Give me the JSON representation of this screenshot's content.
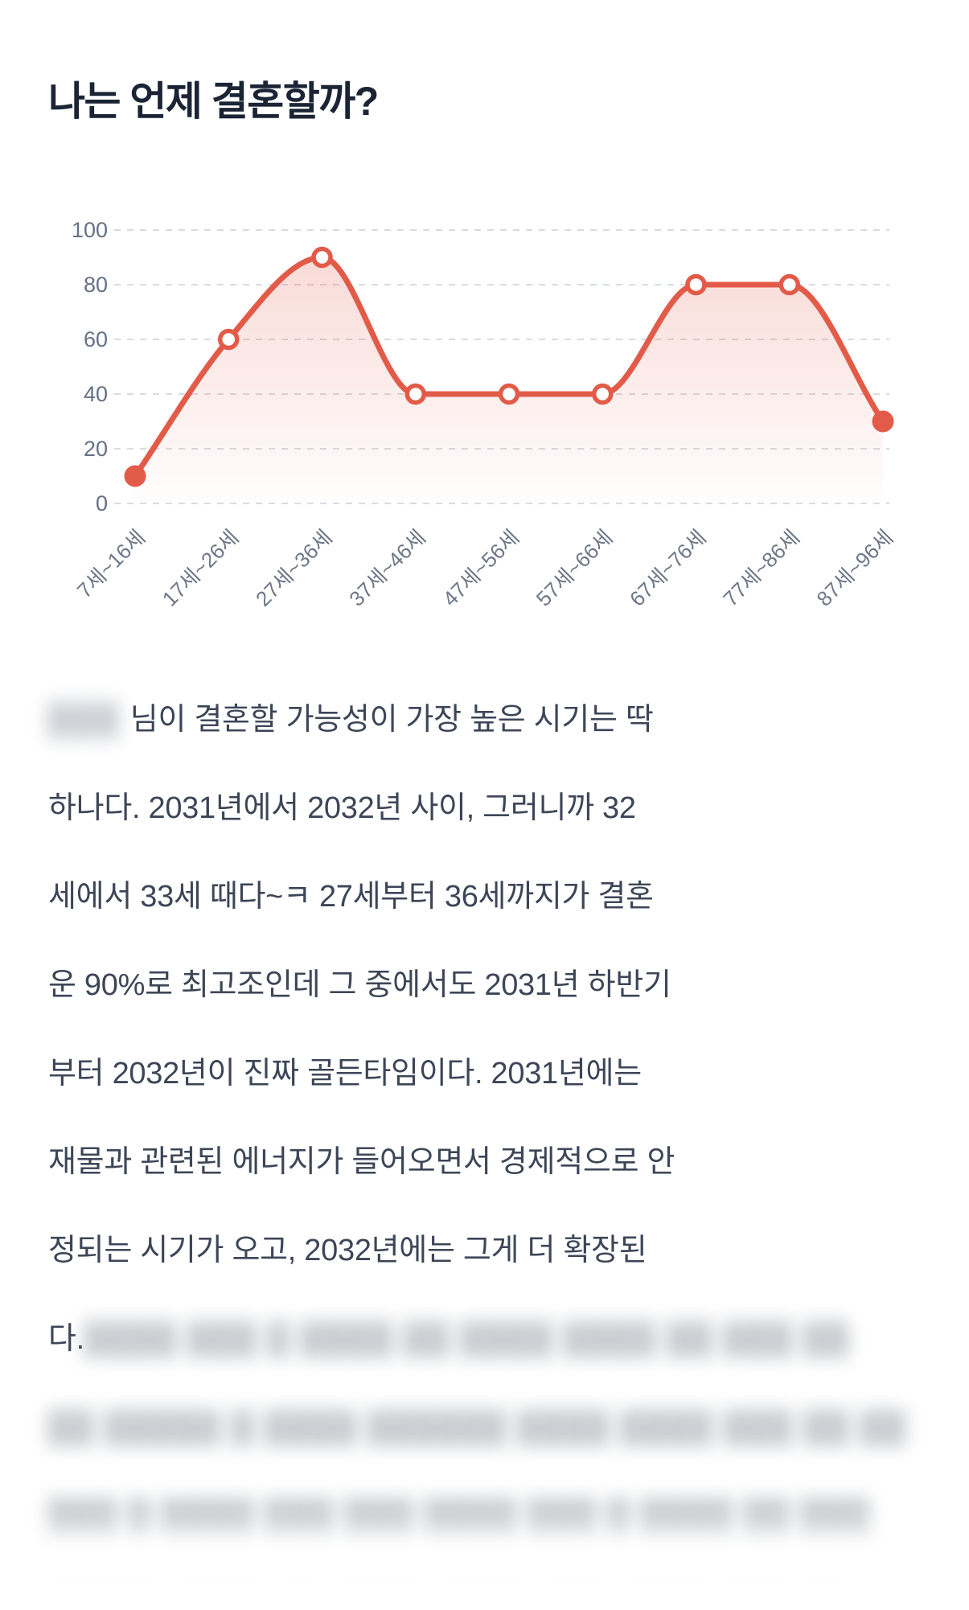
{
  "page": {
    "title": "나는 언제 결혼할까?"
  },
  "chart_data": {
    "type": "line",
    "title": "",
    "categories": [
      "7세~16세",
      "17세~26세",
      "27세~36세",
      "37세~46세",
      "47세~56세",
      "57세~66세",
      "67세~76세",
      "77세~86세",
      "87세~96세"
    ],
    "values": [
      10,
      60,
      90,
      40,
      40,
      40,
      80,
      80,
      30
    ],
    "y_ticks": [
      100,
      80,
      60,
      40,
      20,
      0
    ],
    "ylim": [
      0,
      100
    ],
    "xlabel": "",
    "ylabel": "",
    "legend_position": "none",
    "grid": "horizontal-dashed",
    "x_label_rotation_deg": 45,
    "line_color": "#E25B49",
    "grid_color": "#D8DCE2",
    "tick_color": "#667085",
    "area_fill_top": "rgba(226,91,73,0.22)",
    "area_fill_bottom": "rgba(226,91,73,0.01)",
    "marker_style": "open white circles with red stroke; first and last points solid red"
  },
  "article": {
    "lines": [
      {
        "segments": [
          {
            "text": "███",
            "kind": "name-redaction"
          },
          {
            "text": "님이 결혼할 가능성이 가장 높은 시기는 딱",
            "kind": "plain"
          }
        ]
      },
      {
        "segments": [
          {
            "text": "하나다. 2031년에서 2032년 사이, 그러니까 32",
            "kind": "plain"
          }
        ]
      },
      {
        "segments": [
          {
            "text": "세에서 33세 때다~ㅋ 27세부터 36세까지가 결혼",
            "kind": "plain"
          }
        ]
      },
      {
        "segments": [
          {
            "text": "운 90%로 최고조인데 그 중에서도 2031년 하반기",
            "kind": "plain"
          }
        ]
      },
      {
        "segments": [
          {
            "text": "부터 2032년이 진짜 골든타임이다. 2031년에는",
            "kind": "plain"
          }
        ]
      },
      {
        "segments": [
          {
            "text": "재물과 관련된 에너지가 들어오면서 경제적으로 안",
            "kind": "plain"
          }
        ]
      },
      {
        "segments": [
          {
            "text": "정되는 시기가 오고, 2032년에는 그게 더 확장된",
            "kind": "plain"
          }
        ]
      },
      {
        "segments": [
          {
            "text": "다.",
            "kind": "plain"
          },
          {
            "text": " ████ ███ █ ████ ██ ████ ████ ██ ███ ██",
            "kind": "blurred"
          }
        ]
      },
      {
        "segments": [
          {
            "text": "██ █████ █ ████ ██████ ████ ████ ███ ██ ██",
            "kind": "blurred"
          }
        ]
      },
      {
        "segments": [
          {
            "text": "███ █ ████ ███ ███ ████ ███ █ ████ ██ ███",
            "kind": "blurred"
          }
        ]
      },
      {
        "segments": [
          {
            "text": "█████ ████ ██ ████ ████ ███ ████ ███ ██",
            "kind": "blurred",
            "faint": true
          }
        ]
      }
    ]
  }
}
